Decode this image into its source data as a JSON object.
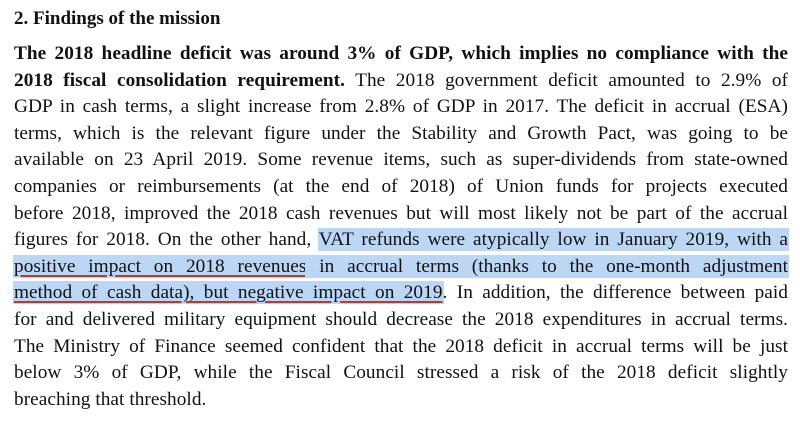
{
  "heading": "2. Findings of the mission",
  "lines": [
    {
      "a": "The 2018 headline deficit was around 3% of GDP, which implies no compliance with the"
    },
    {
      "a": "2018 fiscal consolidation requirement.",
      "b": " The 2018 government deficit amounted to 2.9% of"
    },
    {
      "a": "GDP in cash terms, a slight increase from 2.8% of GDP in 2017. The deficit in accrual (ESA)"
    },
    {
      "a": "terms, which is the relevant figure under the Stability and Growth Pact, was going to be"
    },
    {
      "a": "available on 23 April 2019. Some revenue items, such as super-dividends from state-owned"
    },
    {
      "a": "companies or reimbursements (at the end of 2018) of Union funds for projects executed"
    },
    {
      "a": "before 2018, improved the 2018 cash revenues but will most likely not be part of the accrual"
    },
    {
      "a": "figures for 2018. On the other hand, ",
      "b": "VAT refunds were atypically low in January 2019, with a"
    },
    {
      "a": "positive impact on 2018 revenues",
      "b": " in accrual terms (thanks to the one-month adjustment"
    },
    {
      "a": "method of cash data), but negative impact on 2019",
      "b": ". In addition, the difference between paid"
    },
    {
      "a": "for and delivered military equipment should decrease the 2018 expenditures in accrual terms."
    },
    {
      "a": "The Ministry of Finance seemed confident that the 2018 deficit in accrual terms will be just"
    },
    {
      "a": "below 3% of GDP, while the Fiscal Council stressed a risk of the 2018 deficit slightly"
    },
    {
      "a": "breaching that threshold."
    }
  ],
  "highlight_color": "#bcd6f5",
  "underline_color": "#c0392b"
}
